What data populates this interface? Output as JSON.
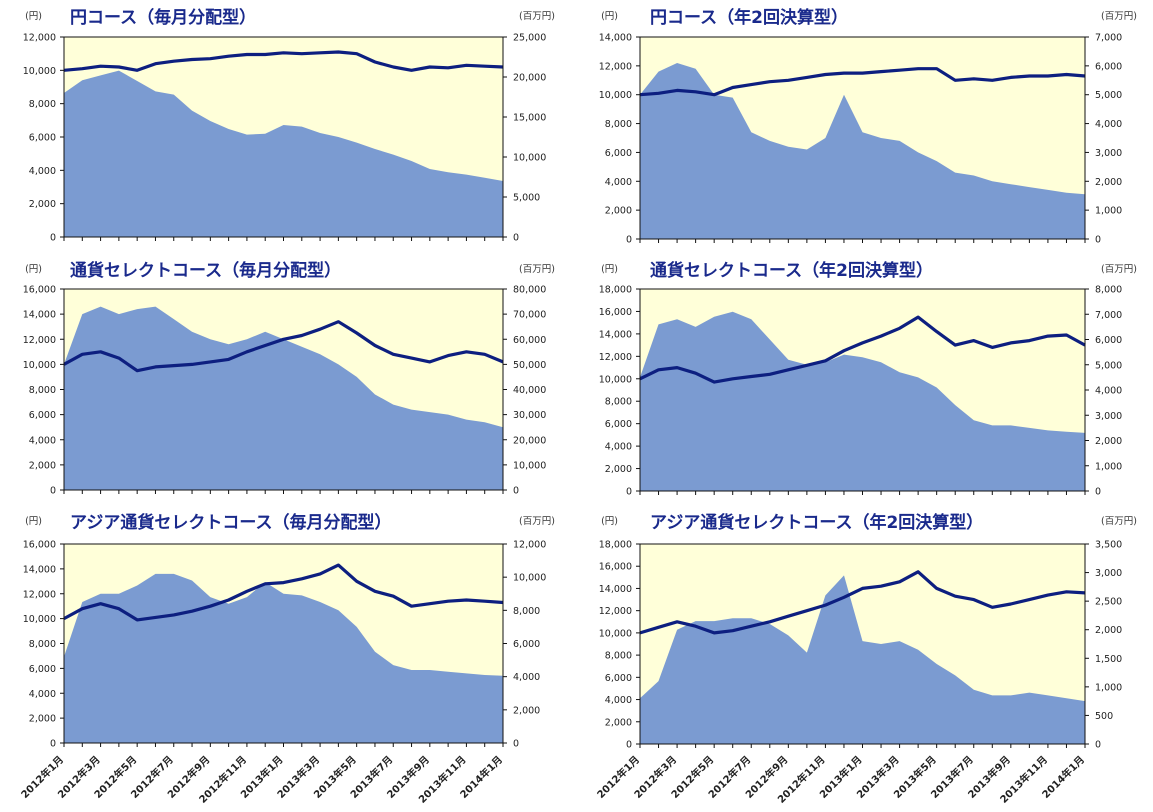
{
  "colors": {
    "plot_bg": "#FFFFD9",
    "area": "#7B9BD1",
    "line": "#0D1F80",
    "title": "#1A2A8C"
  },
  "x_tick_labels": [
    "2012年1月",
    "2012年3月",
    "2012年5月",
    "2012年7月",
    "2012年9月",
    "2012年11月",
    "2013年1月",
    "2013年3月",
    "2013年5月",
    "2013年7月",
    "2013年9月",
    "2013年11月",
    "2014年1月"
  ],
  "chart_data": [
    {
      "type": "line",
      "title": "円コース（毎月分配型）",
      "y_unit_left": "(円)",
      "y_unit_right": "(百万円)",
      "ylim_left": [
        0,
        12000
      ],
      "ylim_right": [
        0,
        25000
      ],
      "yticks_left": [
        "0",
        "2,000",
        "4,000",
        "6,000",
        "8,000",
        "10,000",
        "12,000"
      ],
      "yticks_right": [
        "0",
        "5,000",
        "10,000",
        "15,000",
        "20,000",
        "25,000"
      ],
      "x": [
        "2012-01",
        "2012-02",
        "2012-03",
        "2012-04",
        "2012-05",
        "2012-06",
        "2012-07",
        "2012-08",
        "2012-09",
        "2012-10",
        "2012-11",
        "2012-12",
        "2013-01",
        "2013-02",
        "2013-03",
        "2013-04",
        "2013-05",
        "2013-06",
        "2013-07",
        "2013-08",
        "2013-09",
        "2013-10",
        "2013-11",
        "2013-12",
        "2014-01"
      ],
      "series": [
        {
          "axis": "right",
          "style": "area",
          "values": [
            18000,
            19600,
            20200,
            20800,
            19500,
            18200,
            17800,
            15800,
            14500,
            13500,
            12800,
            12900,
            14000,
            13800,
            13000,
            12500,
            11800,
            11000,
            10300,
            9500,
            8500,
            8100,
            7800,
            7400,
            7000
          ]
        },
        {
          "axis": "left",
          "style": "line",
          "values": [
            10000,
            10100,
            10250,
            10200,
            10000,
            10400,
            10550,
            10650,
            10700,
            10850,
            10950,
            10950,
            11050,
            11000,
            11050,
            11100,
            11000,
            10500,
            10200,
            10000,
            10200,
            10150,
            10300,
            10250,
            10200
          ]
        }
      ]
    },
    {
      "type": "line",
      "title": "円コース（年2回決算型）",
      "y_unit_left": "(円)",
      "y_unit_right": "(百万円)",
      "ylim_left": [
        0,
        14000
      ],
      "ylim_right": [
        0,
        7000
      ],
      "yticks_left": [
        "0",
        "2,000",
        "4,000",
        "6,000",
        "8,000",
        "10,000",
        "12,000",
        "14,000"
      ],
      "yticks_right": [
        "0",
        "1,000",
        "2,000",
        "3,000",
        "4,000",
        "5,000",
        "6,000",
        "7,000"
      ],
      "x": [
        "2012-01",
        "2012-02",
        "2012-03",
        "2012-04",
        "2012-05",
        "2012-06",
        "2012-07",
        "2012-08",
        "2012-09",
        "2012-10",
        "2012-11",
        "2012-12",
        "2013-01",
        "2013-02",
        "2013-03",
        "2013-04",
        "2013-05",
        "2013-06",
        "2013-07",
        "2013-08",
        "2013-09",
        "2013-10",
        "2013-11",
        "2013-12",
        "2014-01"
      ],
      "series": [
        {
          "axis": "right",
          "style": "area",
          "values": [
            5000,
            5800,
            6100,
            5900,
            5000,
            4900,
            3700,
            3400,
            3200,
            3100,
            3500,
            5000,
            3700,
            3500,
            3400,
            3000,
            2700,
            2300,
            2200,
            2000,
            1900,
            1800,
            1700,
            1600,
            1550
          ]
        },
        {
          "axis": "left",
          "style": "line",
          "values": [
            10000,
            10100,
            10300,
            10200,
            10000,
            10500,
            10700,
            10900,
            11000,
            11200,
            11400,
            11500,
            11500,
            11600,
            11700,
            11800,
            11800,
            11000,
            11100,
            11000,
            11200,
            11300,
            11300,
            11400,
            11300
          ]
        }
      ]
    },
    {
      "type": "line",
      "title": "通貨セレクトコース（毎月分配型）",
      "y_unit_left": "(円)",
      "y_unit_right": "(百万円)",
      "ylim_left": [
        0,
        16000
      ],
      "ylim_right": [
        0,
        80000
      ],
      "yticks_left": [
        "0",
        "2,000",
        "4,000",
        "6,000",
        "8,000",
        "10,000",
        "12,000",
        "14,000",
        "16,000"
      ],
      "yticks_right": [
        "0",
        "10,000",
        "20,000",
        "30,000",
        "40,000",
        "50,000",
        "60,000",
        "70,000",
        "80,000"
      ],
      "x": [
        "2012-01",
        "2012-02",
        "2012-03",
        "2012-04",
        "2012-05",
        "2012-06",
        "2012-07",
        "2012-08",
        "2012-09",
        "2012-10",
        "2012-11",
        "2012-12",
        "2013-01",
        "2013-02",
        "2013-03",
        "2013-04",
        "2013-05",
        "2013-06",
        "2013-07",
        "2013-08",
        "2013-09",
        "2013-10",
        "2013-11",
        "2013-12",
        "2014-01"
      ],
      "series": [
        {
          "axis": "right",
          "style": "area",
          "values": [
            50000,
            70000,
            73000,
            70000,
            72000,
            73000,
            68000,
            63000,
            60000,
            58000,
            60000,
            63000,
            60000,
            57000,
            54000,
            50000,
            45000,
            38000,
            34000,
            32000,
            31000,
            30000,
            28000,
            27000,
            25000
          ]
        },
        {
          "axis": "left",
          "style": "line",
          "values": [
            10000,
            10800,
            11000,
            10500,
            9500,
            9800,
            9900,
            10000,
            10200,
            10400,
            11000,
            11500,
            12000,
            12300,
            12800,
            13400,
            12500,
            11500,
            10800,
            10500,
            10200,
            10700,
            11000,
            10800,
            10200
          ]
        }
      ]
    },
    {
      "type": "line",
      "title": "通貨セレクトコース（年2回決算型）",
      "y_unit_left": "(円)",
      "y_unit_right": "(百万円)",
      "ylim_left": [
        0,
        18000
      ],
      "ylim_right": [
        0,
        8000
      ],
      "yticks_left": [
        "0",
        "2,000",
        "4,000",
        "6,000",
        "8,000",
        "10,000",
        "12,000",
        "14,000",
        "16,000",
        "18,000"
      ],
      "yticks_right": [
        "0",
        "1,000",
        "2,000",
        "3,000",
        "4,000",
        "5,000",
        "6,000",
        "7,000",
        "8,000"
      ],
      "x": [
        "2012-01",
        "2012-02",
        "2012-03",
        "2012-04",
        "2012-05",
        "2012-06",
        "2012-07",
        "2012-08",
        "2012-09",
        "2012-10",
        "2012-11",
        "2012-12",
        "2013-01",
        "2013-02",
        "2013-03",
        "2013-04",
        "2013-05",
        "2013-06",
        "2013-07",
        "2013-08",
        "2013-09",
        "2013-10",
        "2013-11",
        "2013-12",
        "2014-01"
      ],
      "series": [
        {
          "axis": "right",
          "style": "area",
          "values": [
            4500,
            6600,
            6800,
            6500,
            6900,
            7100,
            6800,
            6000,
            5200,
            5000,
            5100,
            5400,
            5300,
            5100,
            4700,
            4500,
            4100,
            3400,
            2800,
            2600,
            2600,
            2500,
            2400,
            2350,
            2300
          ]
        },
        {
          "axis": "left",
          "style": "line",
          "values": [
            10000,
            10800,
            11000,
            10500,
            9700,
            10000,
            10200,
            10400,
            10800,
            11200,
            11600,
            12500,
            13200,
            13800,
            14500,
            15500,
            14200,
            13000,
            13400,
            12800,
            13200,
            13400,
            13800,
            13900,
            13000
          ]
        }
      ]
    },
    {
      "type": "line",
      "title": "アジア通貨セレクトコース（毎月分配型）",
      "y_unit_left": "(円)",
      "y_unit_right": "(百万円)",
      "ylim_left": [
        0,
        16000
      ],
      "ylim_right": [
        0,
        12000
      ],
      "yticks_left": [
        "0",
        "2,000",
        "4,000",
        "6,000",
        "8,000",
        "10,000",
        "12,000",
        "14,000",
        "16,000"
      ],
      "yticks_right": [
        "0",
        "2,000",
        "4,000",
        "6,000",
        "8,000",
        "10,000",
        "12,000"
      ],
      "x": [
        "2012-01",
        "2012-02",
        "2012-03",
        "2012-04",
        "2012-05",
        "2012-06",
        "2012-07",
        "2012-08",
        "2012-09",
        "2012-10",
        "2012-11",
        "2012-12",
        "2013-01",
        "2013-02",
        "2013-03",
        "2013-04",
        "2013-05",
        "2013-06",
        "2013-07",
        "2013-08",
        "2013-09",
        "2013-10",
        "2013-11",
        "2013-12",
        "2014-01"
      ],
      "series": [
        {
          "axis": "right",
          "style": "area",
          "values": [
            5200,
            8500,
            9000,
            9000,
            9500,
            10200,
            10200,
            9800,
            8800,
            8400,
            8800,
            9700,
            9000,
            8900,
            8500,
            8000,
            7000,
            5500,
            4700,
            4400,
            4400,
            4300,
            4200,
            4100,
            4050
          ]
        },
        {
          "axis": "left",
          "style": "line",
          "values": [
            10000,
            10800,
            11200,
            10800,
            9900,
            10100,
            10300,
            10600,
            11000,
            11500,
            12200,
            12800,
            12900,
            13200,
            13600,
            14300,
            13000,
            12200,
            11800,
            11000,
            11200,
            11400,
            11500,
            11400,
            11300
          ]
        }
      ]
    },
    {
      "type": "line",
      "title": "アジア通貨セレクトコース（年2回決算型）",
      "y_unit_left": "(円)",
      "y_unit_right": "(百万円)",
      "ylim_left": [
        0,
        18000
      ],
      "ylim_right": [
        0,
        3500
      ],
      "yticks_left": [
        "0",
        "2,000",
        "4,000",
        "6,000",
        "8,000",
        "10,000",
        "12,000",
        "14,000",
        "16,000",
        "18,000"
      ],
      "yticks_right": [
        "0",
        "500",
        "1,000",
        "1,500",
        "2,000",
        "2,500",
        "3,000",
        "3,500"
      ],
      "x": [
        "2012-01",
        "2012-02",
        "2012-03",
        "2012-04",
        "2012-05",
        "2012-06",
        "2012-07",
        "2012-08",
        "2012-09",
        "2012-10",
        "2012-11",
        "2012-12",
        "2013-01",
        "2013-02",
        "2013-03",
        "2013-04",
        "2013-05",
        "2013-06",
        "2013-07",
        "2013-08",
        "2013-09",
        "2013-10",
        "2013-11",
        "2013-12",
        "2014-01"
      ],
      "series": [
        {
          "axis": "right",
          "style": "area",
          "values": [
            800,
            1100,
            2000,
            2150,
            2150,
            2200,
            2200,
            2100,
            1900,
            1600,
            2600,
            2950,
            1800,
            1750,
            1800,
            1650,
            1400,
            1200,
            950,
            850,
            850,
            900,
            850,
            800,
            750
          ]
        },
        {
          "axis": "left",
          "style": "line",
          "values": [
            10000,
            10500,
            11000,
            10600,
            10000,
            10200,
            10600,
            11000,
            11500,
            12000,
            12500,
            13200,
            14000,
            14200,
            14600,
            15500,
            14000,
            13300,
            13000,
            12300,
            12600,
            13000,
            13400,
            13700,
            13600
          ]
        }
      ]
    }
  ]
}
